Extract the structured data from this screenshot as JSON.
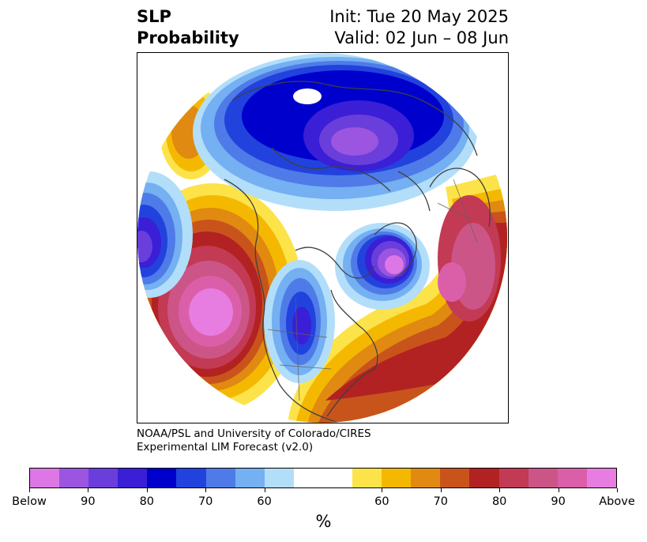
{
  "title": {
    "left_line1": "SLP",
    "left_line2": "Probability",
    "right_line1": "Init: Tue 20 May 2025",
    "right_line2": "Valid: 02 Jun – 08 Jun"
  },
  "credit": {
    "line1": "NOAA/PSL and University of Colorado/CIRES",
    "line2": "Experimental LIM Forecast (v2.0)"
  },
  "map": {
    "projection": "north polar stereographic",
    "field": "SLP probability",
    "features": [
      {
        "name": "strong positive anomaly",
        "region": "North Pacific",
        "category": "Above"
      },
      {
        "name": "positive anomaly belt",
        "region": "North Atlantic to Europe",
        "category": "80-90 above"
      },
      {
        "name": "negative anomaly",
        "region": "Arctic / northern Russia",
        "category": "80-90 below"
      },
      {
        "name": "negative anomaly",
        "region": "Greenland / Labrador",
        "category": "Below"
      },
      {
        "name": "negative anomaly",
        "region": "central North America",
        "category": "70-80 below"
      },
      {
        "name": "negative anomaly",
        "region": "western Siberia",
        "category": "80-90 below"
      }
    ]
  },
  "colorbar": {
    "colors": [
      "#dd77e6",
      "#9b55e0",
      "#6a3edb",
      "#3a1fd6",
      "#0000cc",
      "#2242de",
      "#4f7be8",
      "#74b0f2",
      "#b2defa",
      "#ffffff",
      "#ffffff",
      "#fde34a",
      "#f5b800",
      "#e08a12",
      "#c9541b",
      "#b22222",
      "#c33a55",
      "#cc5588",
      "#db5fa8",
      "#e77de0"
    ],
    "tick_labels": [
      "Below",
      "90",
      "80",
      "70",
      "60",
      "60",
      "70",
      "80",
      "90",
      "Above"
    ],
    "unit_label": "%"
  }
}
